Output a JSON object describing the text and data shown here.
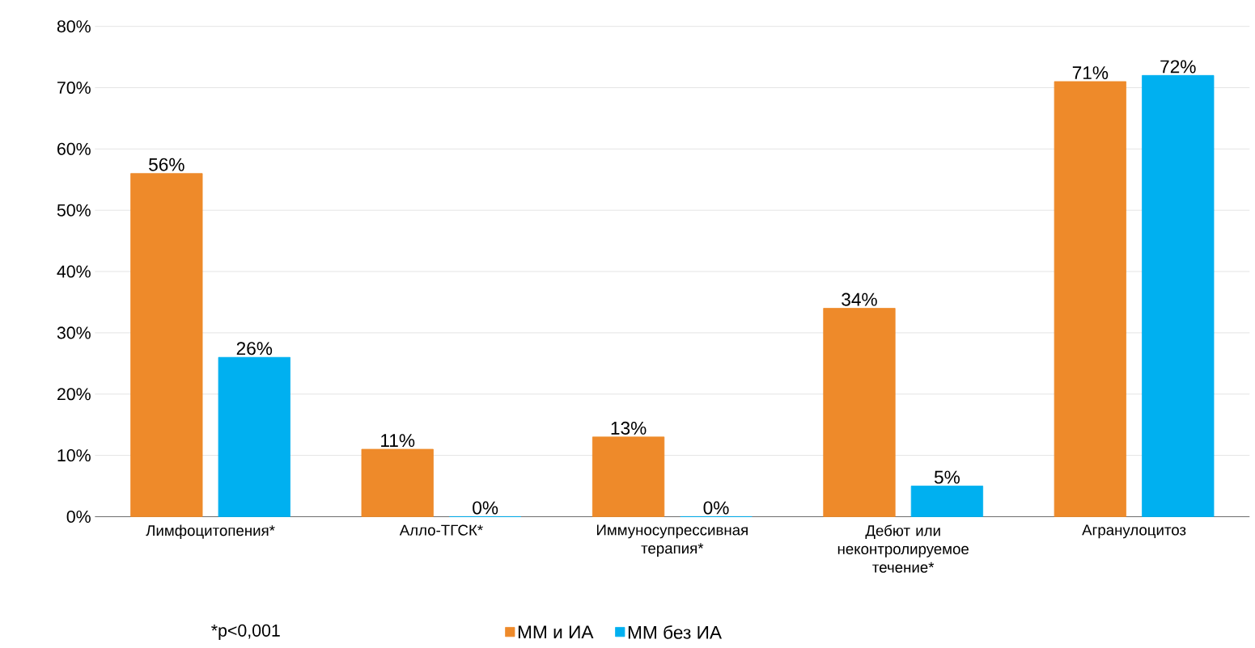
{
  "chart_data": {
    "type": "bar",
    "categories": [
      "Лимфоцитопения*",
      "Алло-ТГСК*",
      "Иммуносупрессивная терапия*",
      "Дебют или неконтролируемое течение*",
      "Агранулоцитоз"
    ],
    "series": [
      {
        "name": "ММ и ИА",
        "color": "#ee8a2a",
        "values": [
          56,
          11,
          13,
          34,
          71
        ],
        "value_labels": [
          "56%",
          "11%",
          "13%",
          "34%",
          "71%"
        ]
      },
      {
        "name": "ММ без ИА",
        "color": "#00b0f0",
        "values": [
          26,
          0,
          0,
          5,
          72
        ],
        "value_labels": [
          "26%",
          "0%",
          "0%",
          "5%",
          "72%"
        ]
      }
    ],
    "ylim": [
      0,
      80
    ],
    "yticks": [
      {
        "value": 0,
        "label": "0%"
      },
      {
        "value": 10,
        "label": "10%"
      },
      {
        "value": 20,
        "label": "20%"
      },
      {
        "value": 30,
        "label": "30%"
      },
      {
        "value": 40,
        "label": "40%"
      },
      {
        "value": 50,
        "label": "50%"
      },
      {
        "value": 60,
        "label": "60%"
      },
      {
        "value": 70,
        "label": "70%"
      },
      {
        "value": 80,
        "label": "80%"
      }
    ],
    "grid": "y",
    "legend": "bottom",
    "annotations": [
      "*p<0,001"
    ]
  }
}
